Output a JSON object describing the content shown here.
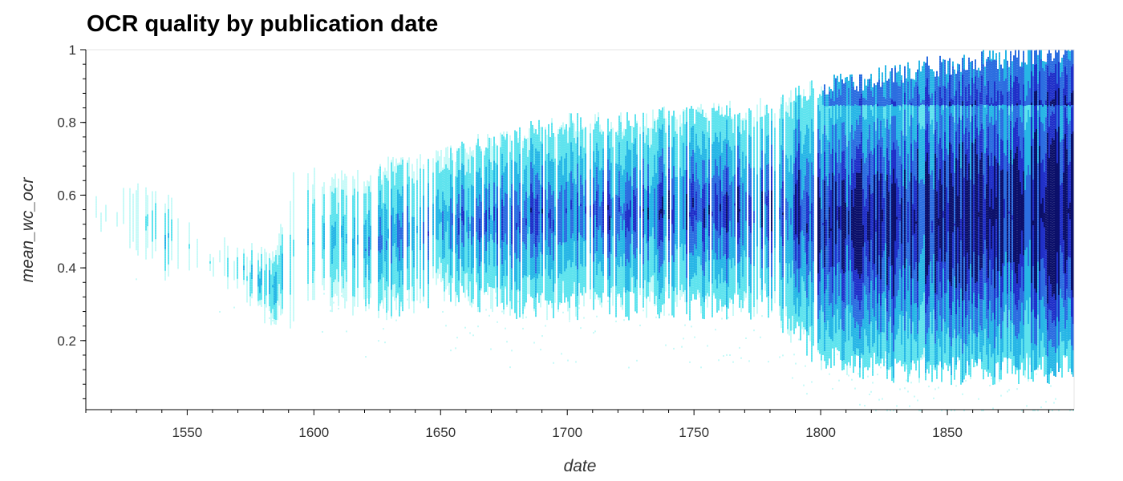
{
  "chart_data": {
    "type": "heatmap",
    "title": "OCR quality by publication date",
    "xlabel": "date",
    "ylabel": "mean_wc_ocr",
    "xlim": [
      1510,
      1900
    ],
    "ylim": [
      0.01,
      1.0
    ],
    "x_ticks": [
      1550,
      1600,
      1650,
      1700,
      1750,
      1800,
      1850
    ],
    "x_tick_labels": [
      "1550",
      "1600",
      "1650",
      "1700",
      "1750",
      "1800",
      "1850"
    ],
    "y_ticks": [
      0.2,
      0.4,
      0.6,
      0.8,
      1
    ],
    "y_tick_labels": [
      "0.2",
      "0.4",
      "0.6",
      "0.8",
      "1"
    ],
    "grid": false,
    "colormap": [
      "#c8faf8",
      "#5ee3ee",
      "#27b6e6",
      "#2b6de0",
      "#1f2fc8",
      "#0b0f6a"
    ],
    "density_profile": [
      {
        "x": 1510,
        "lo": 0.5,
        "hi": 0.6,
        "density": 0.05
      },
      {
        "x": 1528,
        "lo": 0.45,
        "hi": 0.65,
        "density": 0.1
      },
      {
        "x": 1540,
        "lo": 0.4,
        "hi": 0.6,
        "density": 0.3
      },
      {
        "x": 1556,
        "lo": 0.42,
        "hi": 0.48,
        "density": 0.1
      },
      {
        "x": 1584,
        "lo": 0.25,
        "hi": 0.42,
        "density": 0.4
      },
      {
        "x": 1592,
        "lo": 0.28,
        "hi": 0.65,
        "density": 0.3
      },
      {
        "x": 1600,
        "lo": 0.35,
        "hi": 0.65,
        "density": 0.3
      },
      {
        "x": 1610,
        "lo": 0.3,
        "hi": 0.65,
        "density": 0.35
      },
      {
        "x": 1620,
        "lo": 0.3,
        "hi": 0.65,
        "density": 0.4
      },
      {
        "x": 1630,
        "lo": 0.3,
        "hi": 0.68,
        "density": 0.5
      },
      {
        "x": 1640,
        "lo": 0.3,
        "hi": 0.68,
        "density": 0.5
      },
      {
        "x": 1650,
        "lo": 0.35,
        "hi": 0.7,
        "density": 0.5
      },
      {
        "x": 1660,
        "lo": 0.32,
        "hi": 0.73,
        "density": 0.55
      },
      {
        "x": 1670,
        "lo": 0.32,
        "hi": 0.76,
        "density": 0.6
      },
      {
        "x": 1680,
        "lo": 0.3,
        "hi": 0.77,
        "density": 0.6
      },
      {
        "x": 1690,
        "lo": 0.3,
        "hi": 0.78,
        "density": 0.62
      },
      {
        "x": 1700,
        "lo": 0.3,
        "hi": 0.8,
        "density": 0.62
      },
      {
        "x": 1720,
        "lo": 0.3,
        "hi": 0.8,
        "density": 0.65
      },
      {
        "x": 1740,
        "lo": 0.3,
        "hi": 0.82,
        "density": 0.68
      },
      {
        "x": 1760,
        "lo": 0.3,
        "hi": 0.83,
        "density": 0.7
      },
      {
        "x": 1780,
        "lo": 0.3,
        "hi": 0.84,
        "density": 0.72
      },
      {
        "x": 1800,
        "lo": 0.15,
        "hi": 0.9,
        "density": 0.85
      },
      {
        "x": 1820,
        "lo": 0.13,
        "hi": 0.92,
        "density": 0.88
      },
      {
        "x": 1840,
        "lo": 0.12,
        "hi": 0.95,
        "density": 0.92
      },
      {
        "x": 1860,
        "lo": 0.12,
        "hi": 0.97,
        "density": 0.95
      },
      {
        "x": 1880,
        "lo": 0.12,
        "hi": 0.98,
        "density": 0.97
      },
      {
        "x": 1900,
        "lo": 0.12,
        "hi": 1.0,
        "density": 1.0
      }
    ]
  }
}
